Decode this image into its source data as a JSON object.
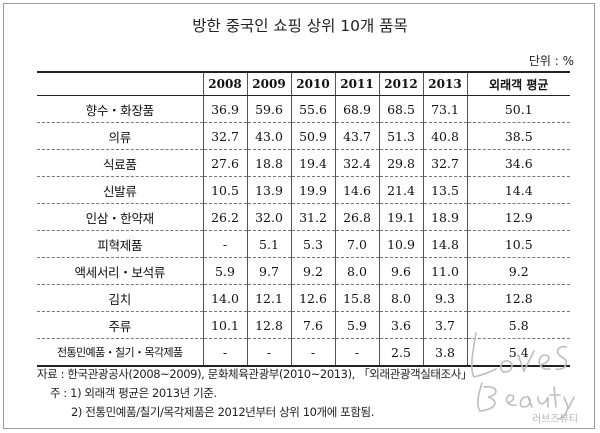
{
  "title": "방한 중국인 쇼핑 상위 10개 품목",
  "unit_label": "단위 : %",
  "table": {
    "headers": [
      "",
      "2008",
      "2009",
      "2010",
      "2011",
      "2012",
      "2013",
      "외래객 평균"
    ],
    "rows": [
      {
        "category": "향수・화장품",
        "values": [
          "36.9",
          "59.6",
          "55.6",
          "68.9",
          "68.5",
          "73.1",
          "50.1"
        ]
      },
      {
        "category": "의류",
        "values": [
          "32.7",
          "43.0",
          "50.9",
          "43.7",
          "51.3",
          "40.8",
          "38.5"
        ]
      },
      {
        "category": "식료품",
        "values": [
          "27.6",
          "18.8",
          "19.4",
          "32.4",
          "29.8",
          "32.7",
          "34.6"
        ]
      },
      {
        "category": "신발류",
        "values": [
          "10.5",
          "13.9",
          "19.9",
          "14.6",
          "21.4",
          "13.5",
          "14.4"
        ]
      },
      {
        "category": "인삼・한약재",
        "values": [
          "26.2",
          "32.0",
          "31.2",
          "26.8",
          "19.1",
          "18.9",
          "12.9"
        ]
      },
      {
        "category": "피혁제품",
        "values": [
          "-",
          "5.1",
          "5.3",
          "7.0",
          "10.9",
          "14.8",
          "10.5"
        ]
      },
      {
        "category": "액세서리・보석류",
        "values": [
          "5.9",
          "9.7",
          "9.2",
          "8.0",
          "9.6",
          "11.0",
          "9.2"
        ]
      },
      {
        "category": "김치",
        "values": [
          "14.0",
          "12.1",
          "12.6",
          "15.8",
          "8.0",
          "9.3",
          "12.8"
        ]
      },
      {
        "category": "주류",
        "values": [
          "10.1",
          "12.8",
          "7.6",
          "5.9",
          "3.6",
          "3.7",
          "5.8"
        ]
      },
      {
        "category": "전통민예품・칠기・목각제품",
        "values": [
          "-",
          "-",
          "-",
          "-",
          "2.5",
          "3.8",
          "5.4"
        ]
      }
    ]
  },
  "notes": {
    "source": "자료 : 한국관광공사(2008~2009), 문화체육관광부(2010~2013), 「외래관광객실태조사」",
    "note1": "주 : 1) 외래객 평균은 2013년 기준.",
    "note2": "2) 전통민예품/칠기/목각제품은 2012년부터 상위 10개에 포함됨."
  },
  "watermark": {
    "script": "Loves Beauty",
    "korean": "러브즈뷰티"
  }
}
